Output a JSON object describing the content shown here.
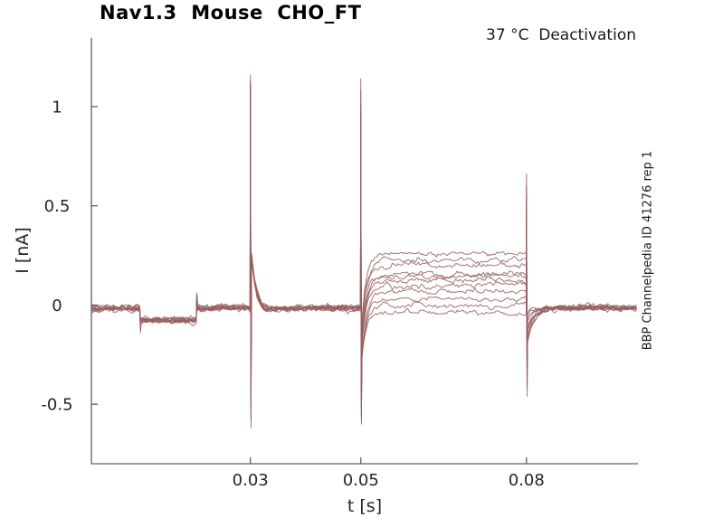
{
  "watermark": "BBP Channelpedia ID 41276 rep 1",
  "chart_data": {
    "type": "line",
    "title": "Nav1.3  Mouse  CHO_FT",
    "subtitle": "37 °C  Deactivation",
    "xlabel": "t [s]",
    "ylabel": "I [nA]",
    "xlim": [
      0.0012,
      0.1002
    ],
    "ylim": [
      -0.8,
      1.346
    ],
    "x_ticks": [
      {
        "value": 0.03,
        "label": "0.03"
      },
      {
        "value": 0.05,
        "label": "0.05"
      },
      {
        "value": 0.08,
        "label": "0.08"
      }
    ],
    "y_ticks": [
      {
        "value": 1,
        "label": "1"
      },
      {
        "value": 0.5,
        "label": "0.5"
      },
      {
        "value": 0,
        "label": "0"
      },
      {
        "value": -0.5,
        "label": "-0.5"
      }
    ],
    "grid": false,
    "legend": "none",
    "line_color": "#975e5f",
    "axis_color": "#5f5f5f",
    "label_color": "#262626",
    "units": {
      "x": "s",
      "y": "nA"
    },
    "protocol": {
      "baseline_nA": -0.015,
      "test_pulse": {
        "t_start": 0.0101,
        "t_end": 0.0203,
        "level_nA": -0.075
      },
      "spike_times_s": [
        0.03,
        0.05,
        0.08
      ],
      "post_spike1_decay": {
        "amp_nA": 0.3,
        "tau_s": 0.0009
      },
      "post_spike1_undershoot": {
        "amp_nA": -0.03,
        "tau_s": 0.004
      },
      "post_spike2_rise_tau_s": 0.0008,
      "post_spike3_recovery_tau_s": 0.0013
    },
    "noise": {
      "sigma_nA": 0.0055,
      "rho": 0.72,
      "dt_s": 0.00025
    },
    "seed": 11,
    "traces": [
      {
        "steady_nA": 0.26,
        "start_after_spike2": -0.07,
        "start_after_spike3": -0.19,
        "spike1_peak_nA": 1.16,
        "spike1_trough_nA": -0.62,
        "spike2_peak_nA": 1.14,
        "spike2_trough_nA": -0.6,
        "spike3_peak_nA": 0.66,
        "spike3_trough_nA": -0.46,
        "pulse_entry_nA": -0.14,
        "pulse_exit_nA": 0.05
      },
      {
        "steady_nA": 0.225,
        "start_after_spike2": -0.1,
        "start_after_spike3": -0.17,
        "spike1_peak_nA": 1.13,
        "spike1_trough_nA": -0.45,
        "spike2_peak_nA": 1.08,
        "spike2_trough_nA": -0.48,
        "spike3_peak_nA": 0.55,
        "spike3_trough_nA": -0.35,
        "pulse_entry_nA": -0.1,
        "pulse_exit_nA": 0.03
      },
      {
        "steady_nA": 0.2,
        "start_after_spike2": -0.13,
        "start_after_spike3": -0.16,
        "spike1_peak_nA": 1.1,
        "spike1_trough_nA": -0.55,
        "spike2_peak_nA": 1.02,
        "spike2_trough_nA": -0.55,
        "spike3_peak_nA": 0.6,
        "spike3_trough_nA": -0.42,
        "pulse_entry_nA": -0.12,
        "pulse_exit_nA": 0.06
      },
      {
        "steady_nA": 0.155,
        "start_after_spike2": -0.17,
        "start_after_spike3": -0.14,
        "spike1_peak_nA": 1.08,
        "spike1_trough_nA": -0.38,
        "spike2_peak_nA": 0.97,
        "spike2_trough_nA": -0.4,
        "spike3_peak_nA": 0.45,
        "spike3_trough_nA": -0.3,
        "pulse_entry_nA": -0.09,
        "pulse_exit_nA": 0.03
      },
      {
        "steady_nA": 0.145,
        "start_after_spike2": -0.185,
        "start_after_spike3": -0.13,
        "spike1_peak_nA": 1.06,
        "spike1_trough_nA": -0.5,
        "spike2_peak_nA": 0.92,
        "spike2_trough_nA": -0.52,
        "spike3_peak_nA": 0.5,
        "spike3_trough_nA": -0.38,
        "pulse_entry_nA": -0.11,
        "pulse_exit_nA": 0.04
      },
      {
        "steady_nA": 0.125,
        "start_after_spike2": -0.205,
        "start_after_spike3": -0.12,
        "spike1_peak_nA": 1.12,
        "spike1_trough_nA": -0.42,
        "spike2_peak_nA": 0.88,
        "spike2_trough_nA": -0.45,
        "spike3_peak_nA": 0.4,
        "spike3_trough_nA": -0.25,
        "pulse_entry_nA": -0.1,
        "pulse_exit_nA": 0.05
      },
      {
        "steady_nA": 0.1,
        "start_after_spike2": -0.23,
        "start_after_spike3": -0.105,
        "spike1_peak_nA": 1.04,
        "spike1_trough_nA": -0.58,
        "spike2_peak_nA": 0.86,
        "spike2_trough_nA": -0.58,
        "spike3_peak_nA": 0.35,
        "spike3_trough_nA": -0.33,
        "pulse_entry_nA": -0.13,
        "pulse_exit_nA": 0.03
      },
      {
        "steady_nA": 0.065,
        "start_after_spike2": -0.265,
        "start_after_spike3": -0.09,
        "spike1_peak_nA": 1.09,
        "spike1_trough_nA": -0.35,
        "spike2_peak_nA": 0.9,
        "spike2_trough_nA": -0.38,
        "spike3_peak_nA": 0.42,
        "spike3_trough_nA": -0.2,
        "pulse_entry_nA": -0.09,
        "pulse_exit_nA": 0.06
      },
      {
        "steady_nA": 0.03,
        "start_after_spike2": -0.27,
        "start_after_spike3": -0.07,
        "spike1_peak_nA": 1.07,
        "spike1_trough_nA": -0.47,
        "spike2_peak_nA": 0.95,
        "spike2_trough_nA": -0.5,
        "spike3_peak_nA": 0.3,
        "spike3_trough_nA": -0.28,
        "pulse_entry_nA": -0.12,
        "pulse_exit_nA": 0.04
      },
      {
        "steady_nA": -0.005,
        "start_after_spike2": -0.27,
        "start_after_spike3": -0.055,
        "spike1_peak_nA": 1.05,
        "spike1_trough_nA": -0.52,
        "spike2_peak_nA": 0.85,
        "spike2_trough_nA": -0.43,
        "spike3_peak_nA": 0.25,
        "spike3_trough_nA": -0.22,
        "pulse_entry_nA": -0.1,
        "pulse_exit_nA": 0.05
      },
      {
        "steady_nA": -0.04,
        "start_after_spike2": -0.27,
        "start_after_spike3": -0.045,
        "spike1_peak_nA": 1.11,
        "spike1_trough_nA": -0.4,
        "spike2_peak_nA": 0.99,
        "spike2_trough_nA": -0.56,
        "spike3_peak_nA": 0.38,
        "spike3_trough_nA": -0.31,
        "pulse_entry_nA": -0.11,
        "pulse_exit_nA": 0.03
      }
    ]
  }
}
